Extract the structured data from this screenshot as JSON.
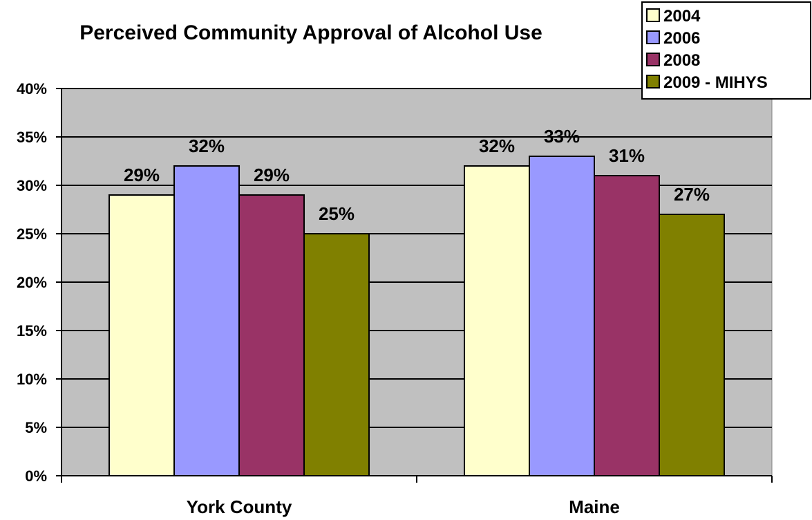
{
  "chart_data": {
    "type": "bar",
    "title": "Perceived Community Approval of Alcohol Use",
    "categories": [
      "York County",
      "Maine"
    ],
    "series": [
      {
        "name": "2004",
        "values": [
          29,
          32
        ],
        "color": "#FFFFCC"
      },
      {
        "name": "2006",
        "values": [
          32,
          33
        ],
        "color": "#9999FF"
      },
      {
        "name": "2008",
        "values": [
          29,
          31
        ],
        "color": "#993366"
      },
      {
        "name": "2009 - MIHYS",
        "values": [
          25,
          27
        ],
        "color": "#808000"
      }
    ],
    "data_labels": [
      [
        "29%",
        "32%"
      ],
      [
        "32%",
        "33%"
      ],
      [
        "29%",
        "31%"
      ],
      [
        "25%",
        "27%"
      ]
    ],
    "yticks": [
      "0%",
      "5%",
      "10%",
      "15%",
      "20%",
      "25%",
      "30%",
      "35%",
      "40%"
    ],
    "ylim": [
      0,
      40
    ],
    "ytick_step": 5,
    "xlabel": "",
    "ylabel": "",
    "grid": true,
    "plot_background": "#C0C0C0",
    "legend_position": "top-right"
  }
}
